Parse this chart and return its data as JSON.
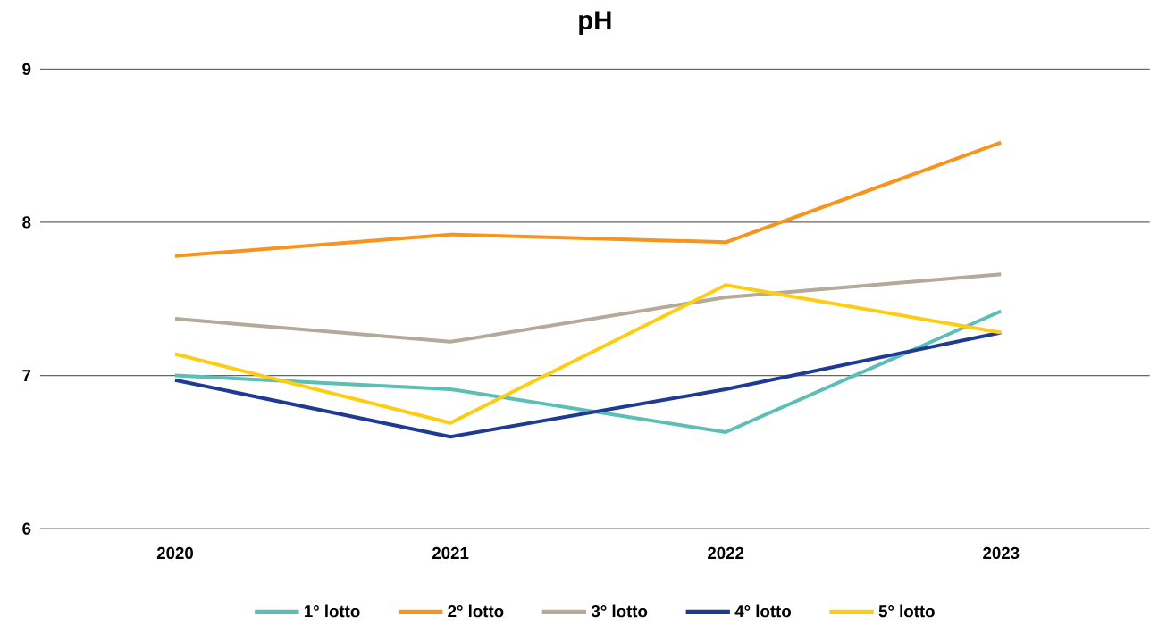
{
  "chart_data": {
    "type": "line",
    "title": "pH",
    "categories": [
      "2020",
      "2021",
      "2022",
      "2023"
    ],
    "series": [
      {
        "name": "1° lotto",
        "color": "#5bbfb5",
        "values": [
          7.0,
          6.91,
          6.63,
          7.42
        ]
      },
      {
        "name": "2° lotto",
        "color": "#f7941d",
        "values": [
          7.78,
          7.92,
          7.87,
          8.52
        ]
      },
      {
        "name": "3° lotto",
        "color": "#b5a999",
        "values": [
          7.37,
          7.22,
          7.51,
          7.66
        ]
      },
      {
        "name": "4° lotto",
        "color": "#1f3a93",
        "values": [
          6.97,
          6.6,
          6.91,
          7.28
        ]
      },
      {
        "name": "5° lotto",
        "color": "#ffcc14",
        "values": [
          7.14,
          6.69,
          7.59,
          7.28
        ]
      }
    ],
    "ylim": [
      6,
      9
    ],
    "yticks": [
      6,
      7,
      8,
      9
    ],
    "grid": "y",
    "legend": "bottom"
  }
}
